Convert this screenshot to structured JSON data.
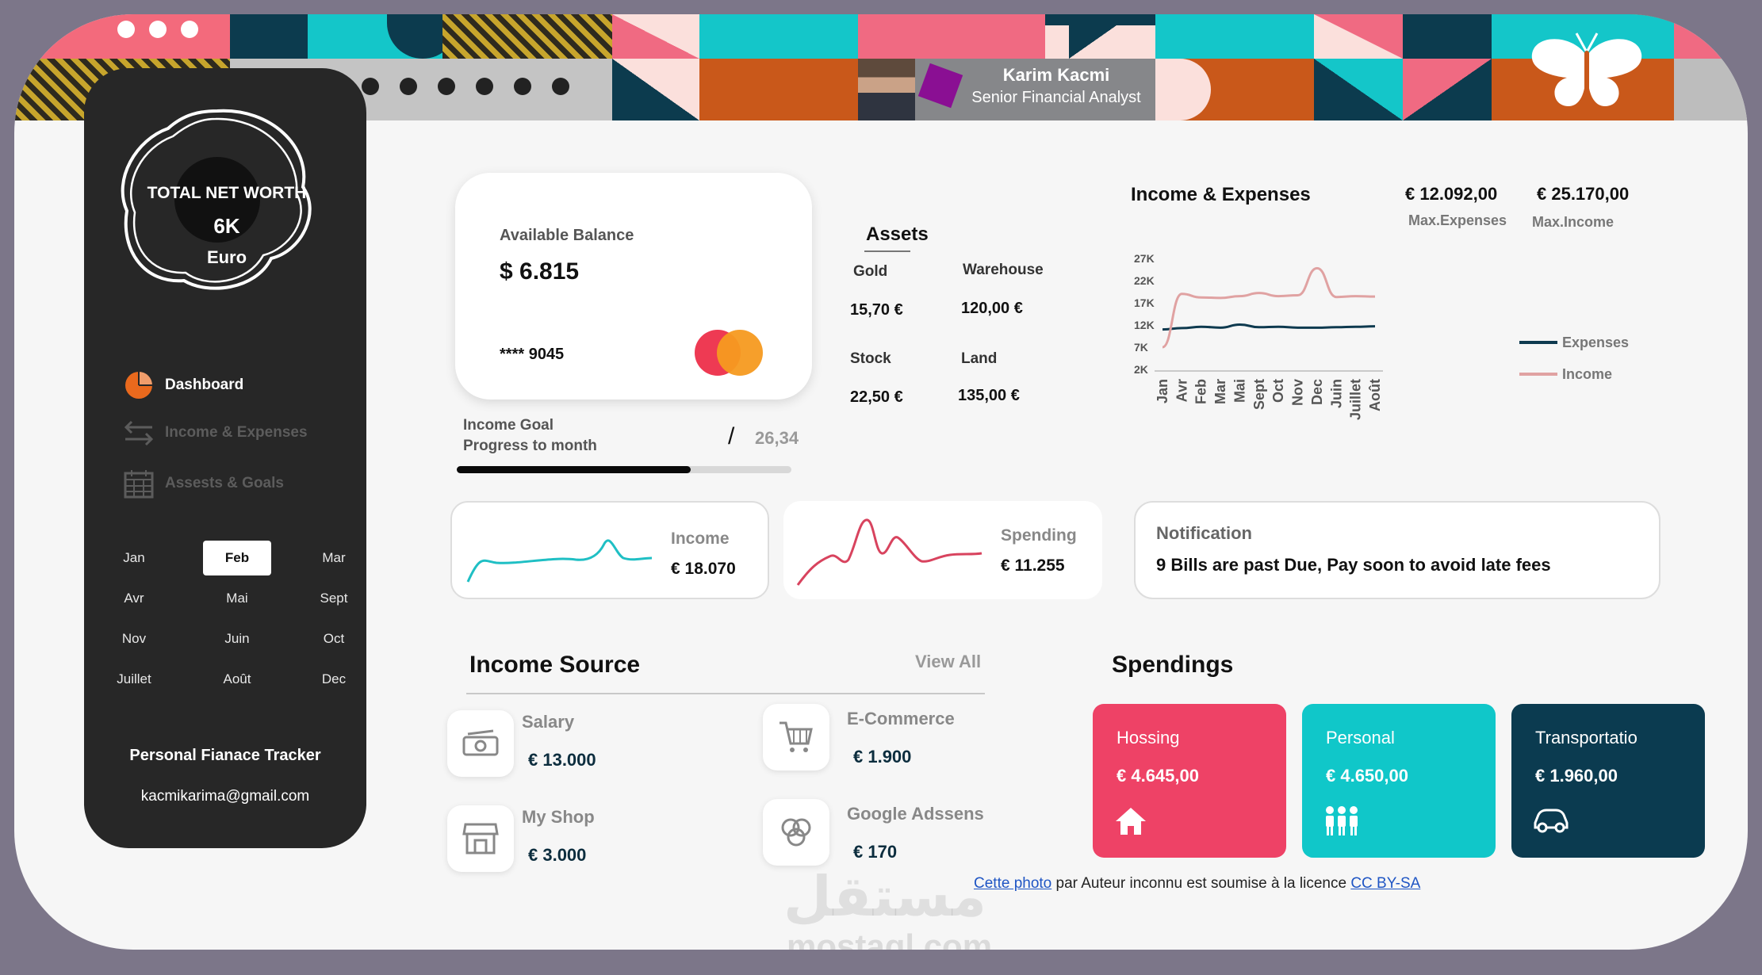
{
  "profile": {
    "name": "Karim Kacmi",
    "role": "Senior Financial Analyst"
  },
  "sidebar": {
    "networth_title": "TOTAL NET WORTH",
    "networth_value": "6K",
    "networth_unit": "Euro",
    "nav": [
      {
        "label": "Dashboard",
        "icon": "pie-chart-icon",
        "active": true
      },
      {
        "label": "Income & Expenses",
        "icon": "arrows-exchange-icon",
        "active": false
      },
      {
        "label": "Assests & Goals",
        "icon": "calendar-icon",
        "active": false
      }
    ],
    "months": [
      "Jan",
      "Feb",
      "Mar",
      "Avr",
      "Mai",
      "Sept",
      "Nov",
      "Juin",
      "Oct",
      "Juillet",
      "Août",
      "Dec"
    ],
    "selected_month": "Feb",
    "app_name": "Personal Fianace Tracker",
    "email": "kacmikarima@gmail.com"
  },
  "balance": {
    "label": "Available Balance",
    "value": "$ 6.815",
    "card_number": "**** 9045",
    "card_brand_icon": "mastercard-icon"
  },
  "goal": {
    "label_line1": "Income Goal",
    "label_line2": "Progress to month",
    "slash": "/",
    "value": "26,34",
    "progress_fraction": 0.7
  },
  "assets": {
    "title": "Assets",
    "items": [
      {
        "label": "Gold",
        "value": "15,70 €"
      },
      {
        "label": "Warehouse",
        "value": "120,00 €"
      },
      {
        "label": "Stock",
        "value": "22,50 €"
      },
      {
        "label": "Land",
        "value": "135,00 €"
      }
    ]
  },
  "income_expenses": {
    "title": "Income & Expenses",
    "max_expenses_value": "€ 12.092,00",
    "max_expenses_label": "Max.Expenses",
    "max_income_value": "€ 25.170,00",
    "max_income_label": "Max.Income"
  },
  "chart_data": {
    "type": "line",
    "title": "Income & Expenses",
    "categories": [
      "Jan",
      "Avr",
      "Feb",
      "Mar",
      "Mai",
      "Sept",
      "Oct",
      "Nov",
      "Dec",
      "Juin",
      "Juillet",
      "Août"
    ],
    "y_ticks": [
      "2K",
      "7K",
      "12K",
      "17K",
      "22K",
      "27K"
    ],
    "ylim": [
      2000,
      27000
    ],
    "legend_position": "right",
    "series": [
      {
        "name": "Expenses",
        "color": "#0e3a4f",
        "values": [
          11000,
          11300,
          11600,
          11400,
          12100,
          11500,
          11600,
          11400,
          11400,
          11500,
          11600,
          11700
        ]
      },
      {
        "name": "Income",
        "color": "#e0a2a2",
        "values": [
          7000,
          19000,
          18200,
          18100,
          18500,
          19200,
          18500,
          18700,
          24800,
          18300,
          18500,
          18400
        ]
      }
    ]
  },
  "income_card": {
    "label": "Income",
    "value": "€ 18.070",
    "color": "#1fbfc4"
  },
  "spending_card": {
    "label": "Spending",
    "value": "€ 11.255",
    "color": "#d8435e"
  },
  "notification": {
    "title": "Notification",
    "text": "9 Bills are past Due, Pay soon to avoid late fees"
  },
  "income_source": {
    "title": "Income Source",
    "view_all": "View All",
    "items": [
      {
        "name": "Salary",
        "value": "€ 13.000",
        "icon": "money-bill-icon"
      },
      {
        "name": "E-Commerce",
        "value": "€ 1.900",
        "icon": "shopping-cart-icon"
      },
      {
        "name": "My Shop",
        "value": "€ 3.000",
        "icon": "storefront-icon"
      },
      {
        "name": "Google Adssens",
        "value": "€ 170",
        "icon": "venn-circles-icon"
      }
    ]
  },
  "spendings": {
    "title": "Spendings",
    "items": [
      {
        "name": "Hossing",
        "value": "€ 4.645,00",
        "color": "#ee4266",
        "icon": "house-icon"
      },
      {
        "name": "Personal",
        "value": "€ 4.650,00",
        "color": "#10c7c9",
        "icon": "people-icon"
      },
      {
        "name": "Transportatio",
        "value": "€ 1.960,00",
        "color": "#0b3b50",
        "icon": "car-icon"
      }
    ]
  },
  "credit": {
    "link1": "Cette photo",
    "middle": " par Auteur inconnu est soumise à la licence ",
    "link2": "CC BY-SA"
  },
  "watermark": {
    "arabic": "مستقل",
    "latin": "mostaql.com"
  }
}
